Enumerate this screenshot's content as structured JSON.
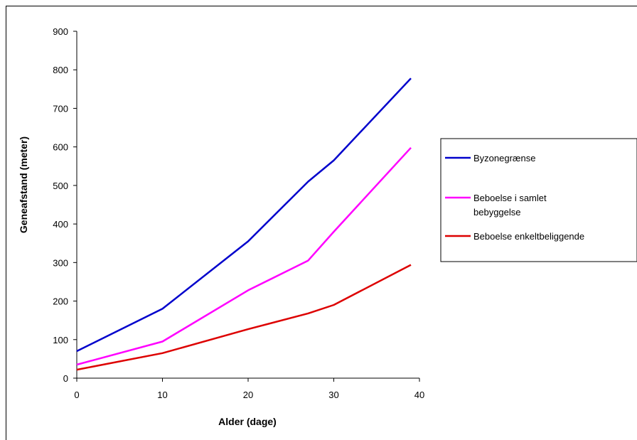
{
  "chart_data": {
    "type": "line",
    "xlabel": "Alder (dage)",
    "ylabel": "Geneafstand (meter)",
    "xlim": [
      0,
      40
    ],
    "ylim": [
      0,
      900
    ],
    "xticks": [
      0,
      10,
      20,
      30,
      40
    ],
    "yticks": [
      0,
      100,
      200,
      300,
      400,
      500,
      600,
      700,
      800,
      900
    ],
    "grid": false,
    "legend_position": "right",
    "x": [
      0,
      10,
      20,
      27,
      30,
      39
    ],
    "series": [
      {
        "name": "Byzonegrænse",
        "name_lines": [
          "Byzonegrænse"
        ],
        "color": "#0000cc",
        "values": [
          70,
          180,
          355,
          510,
          565,
          778
        ]
      },
      {
        "name": "Beboelse i samlet bebyggelse",
        "name_lines": [
          "Beboelse i samlet",
          "bebyggelse"
        ],
        "color": "#ff00ff",
        "values": [
          35,
          95,
          228,
          305,
          380,
          598
        ]
      },
      {
        "name": "Beboelse enkeltbeliggende",
        "name_lines": [
          "Beboelse enkeltbeliggende"
        ],
        "color": "#dd0000",
        "values": [
          22,
          65,
          127,
          168,
          190,
          294
        ]
      }
    ]
  }
}
